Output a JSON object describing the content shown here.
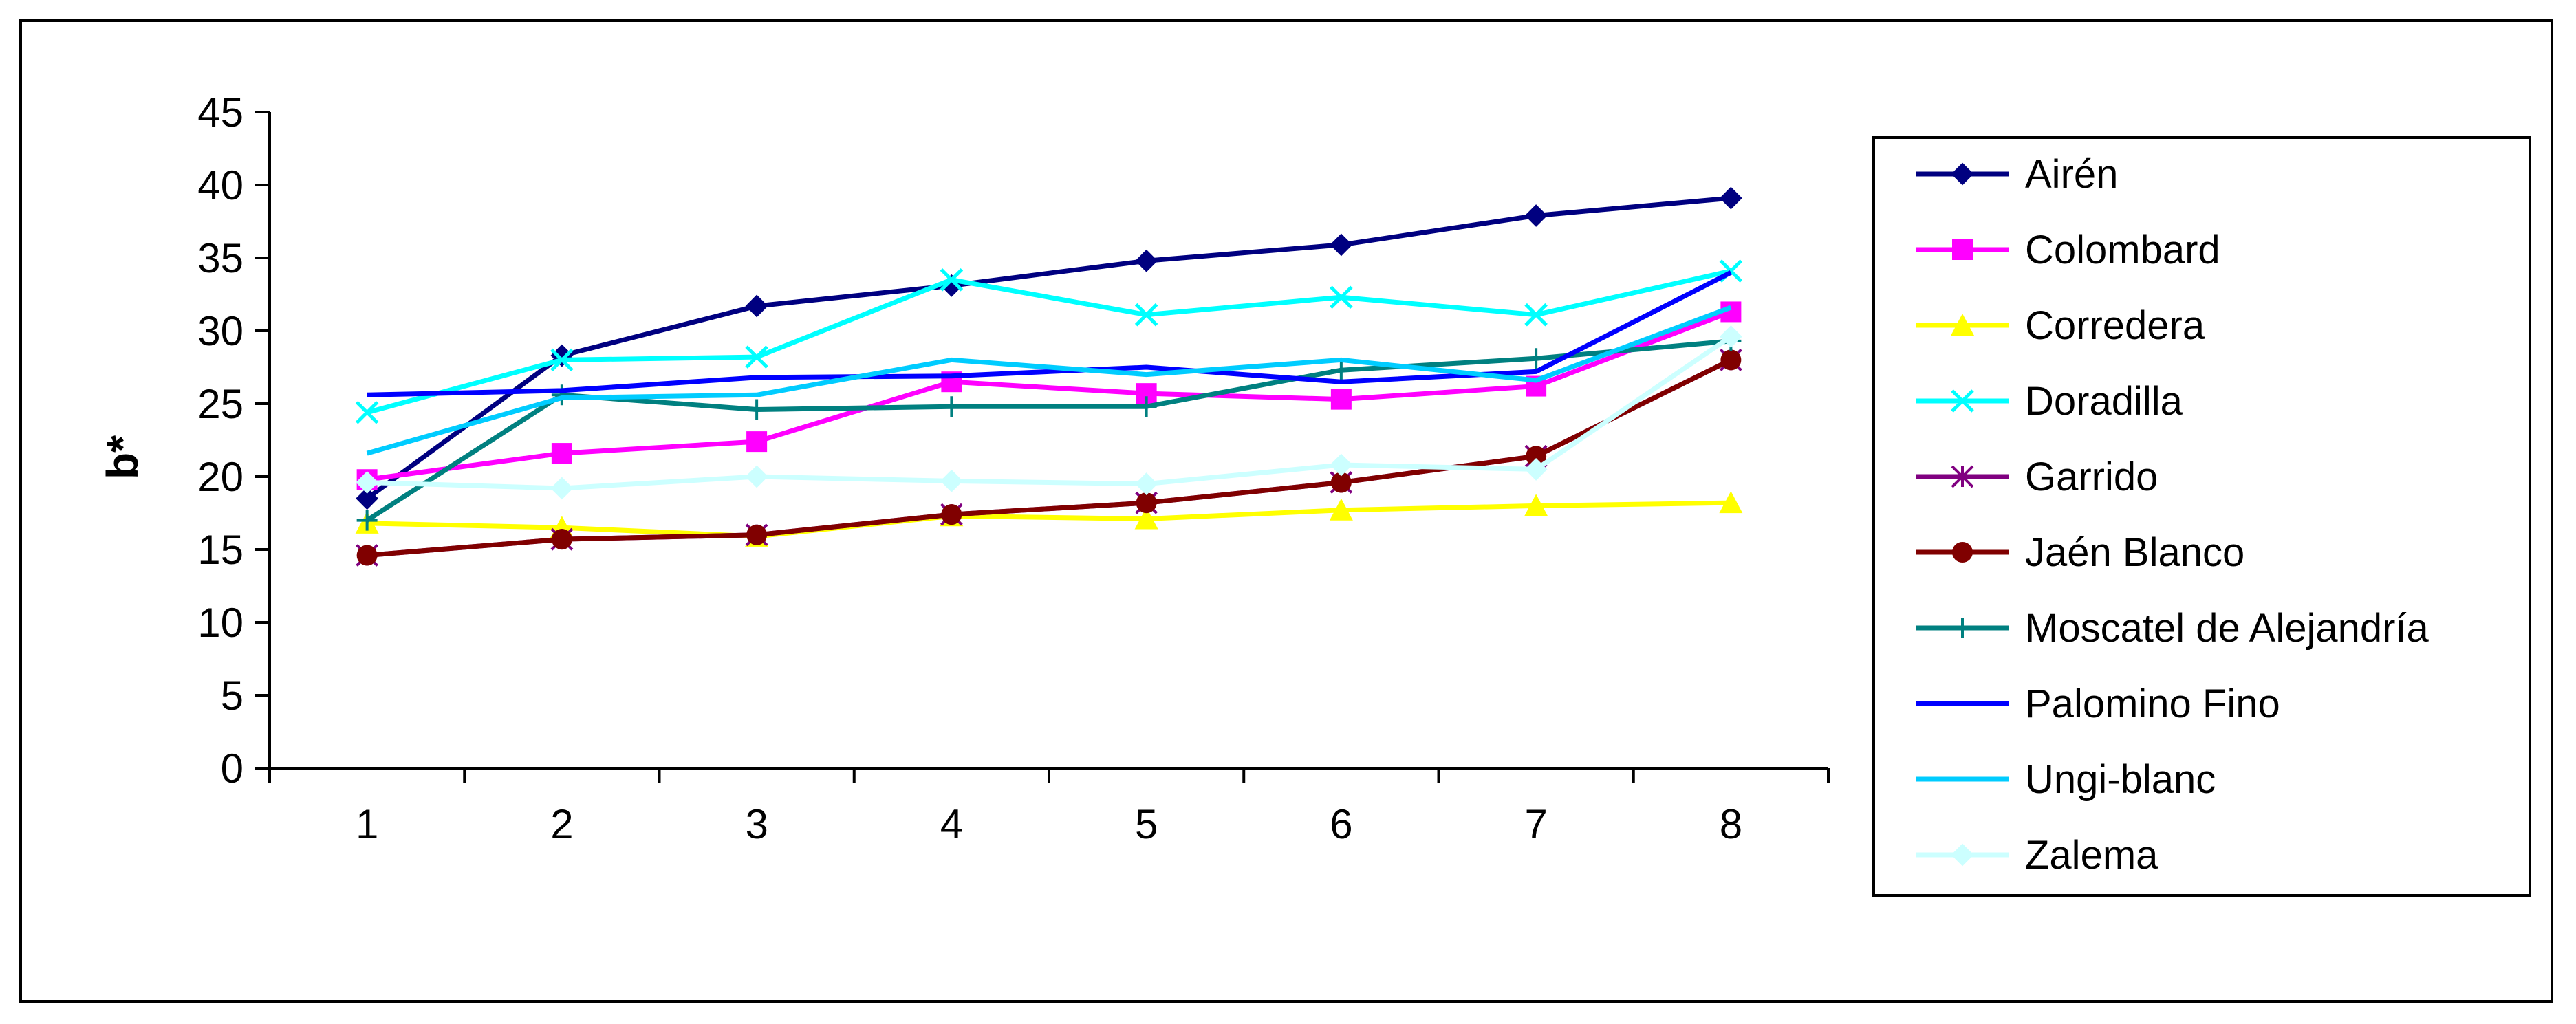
{
  "chart_data": {
    "type": "line",
    "title": "",
    "xlabel": "",
    "ylabel": "b*",
    "categories": [
      "1",
      "2",
      "3",
      "4",
      "5",
      "6",
      "7",
      "8"
    ],
    "ylim": [
      0,
      45
    ],
    "yticks": [
      "0",
      "5",
      "10",
      "15",
      "20",
      "25",
      "30",
      "35",
      "40",
      "45"
    ],
    "grid": false,
    "legend_position": "right",
    "series": [
      {
        "name": "Airén",
        "color": "#000080",
        "marker": "diamond",
        "values": [
          18.5,
          28.3,
          31.7,
          33.1,
          34.8,
          35.9,
          37.9,
          39.1
        ]
      },
      {
        "name": "Colombard",
        "color": "#ff00ff",
        "marker": "square",
        "values": [
          19.8,
          21.6,
          22.4,
          26.5,
          25.7,
          25.3,
          26.2,
          31.3
        ]
      },
      {
        "name": "Corredera",
        "color": "#ffff00",
        "marker": "triangle",
        "values": [
          16.8,
          16.5,
          15.9,
          17.3,
          17.1,
          17.7,
          18.0,
          18.2
        ]
      },
      {
        "name": "Doradilla",
        "color": "#00ffff",
        "marker": "x",
        "values": [
          24.4,
          28.0,
          28.2,
          33.5,
          31.1,
          32.3,
          31.1,
          34.1
        ]
      },
      {
        "name": "Garrido",
        "color": "#800080",
        "marker": "star",
        "values": [
          14.6,
          15.7,
          16.0,
          17.4,
          18.2,
          19.6,
          21.4,
          28.0
        ]
      },
      {
        "name": "Jaén Blanco",
        "color": "#800000",
        "marker": "circle",
        "values": [
          14.6,
          15.7,
          16.0,
          17.4,
          18.2,
          19.6,
          21.4,
          28.0
        ]
      },
      {
        "name": "Moscatel de Alejandría",
        "color": "#008080",
        "marker": "plus",
        "values": [
          17.0,
          25.6,
          24.6,
          24.8,
          24.8,
          27.3,
          28.1,
          29.3
        ]
      },
      {
        "name": "Palomino Fino",
        "color": "#0000ff",
        "marker": "none",
        "values": [
          25.6,
          25.9,
          26.8,
          26.9,
          27.5,
          26.5,
          27.2,
          34.0
        ]
      },
      {
        "name": "Ungi-blanc",
        "color": "#00ccff",
        "marker": "none",
        "values": [
          21.6,
          25.4,
          25.6,
          28.0,
          27.0,
          28.0,
          26.6,
          31.6
        ]
      },
      {
        "name": "Zalema",
        "color": "#ccffff",
        "marker": "diamond",
        "values": [
          19.6,
          19.2,
          20.0,
          19.7,
          19.5,
          20.8,
          20.5,
          29.6
        ]
      }
    ]
  }
}
